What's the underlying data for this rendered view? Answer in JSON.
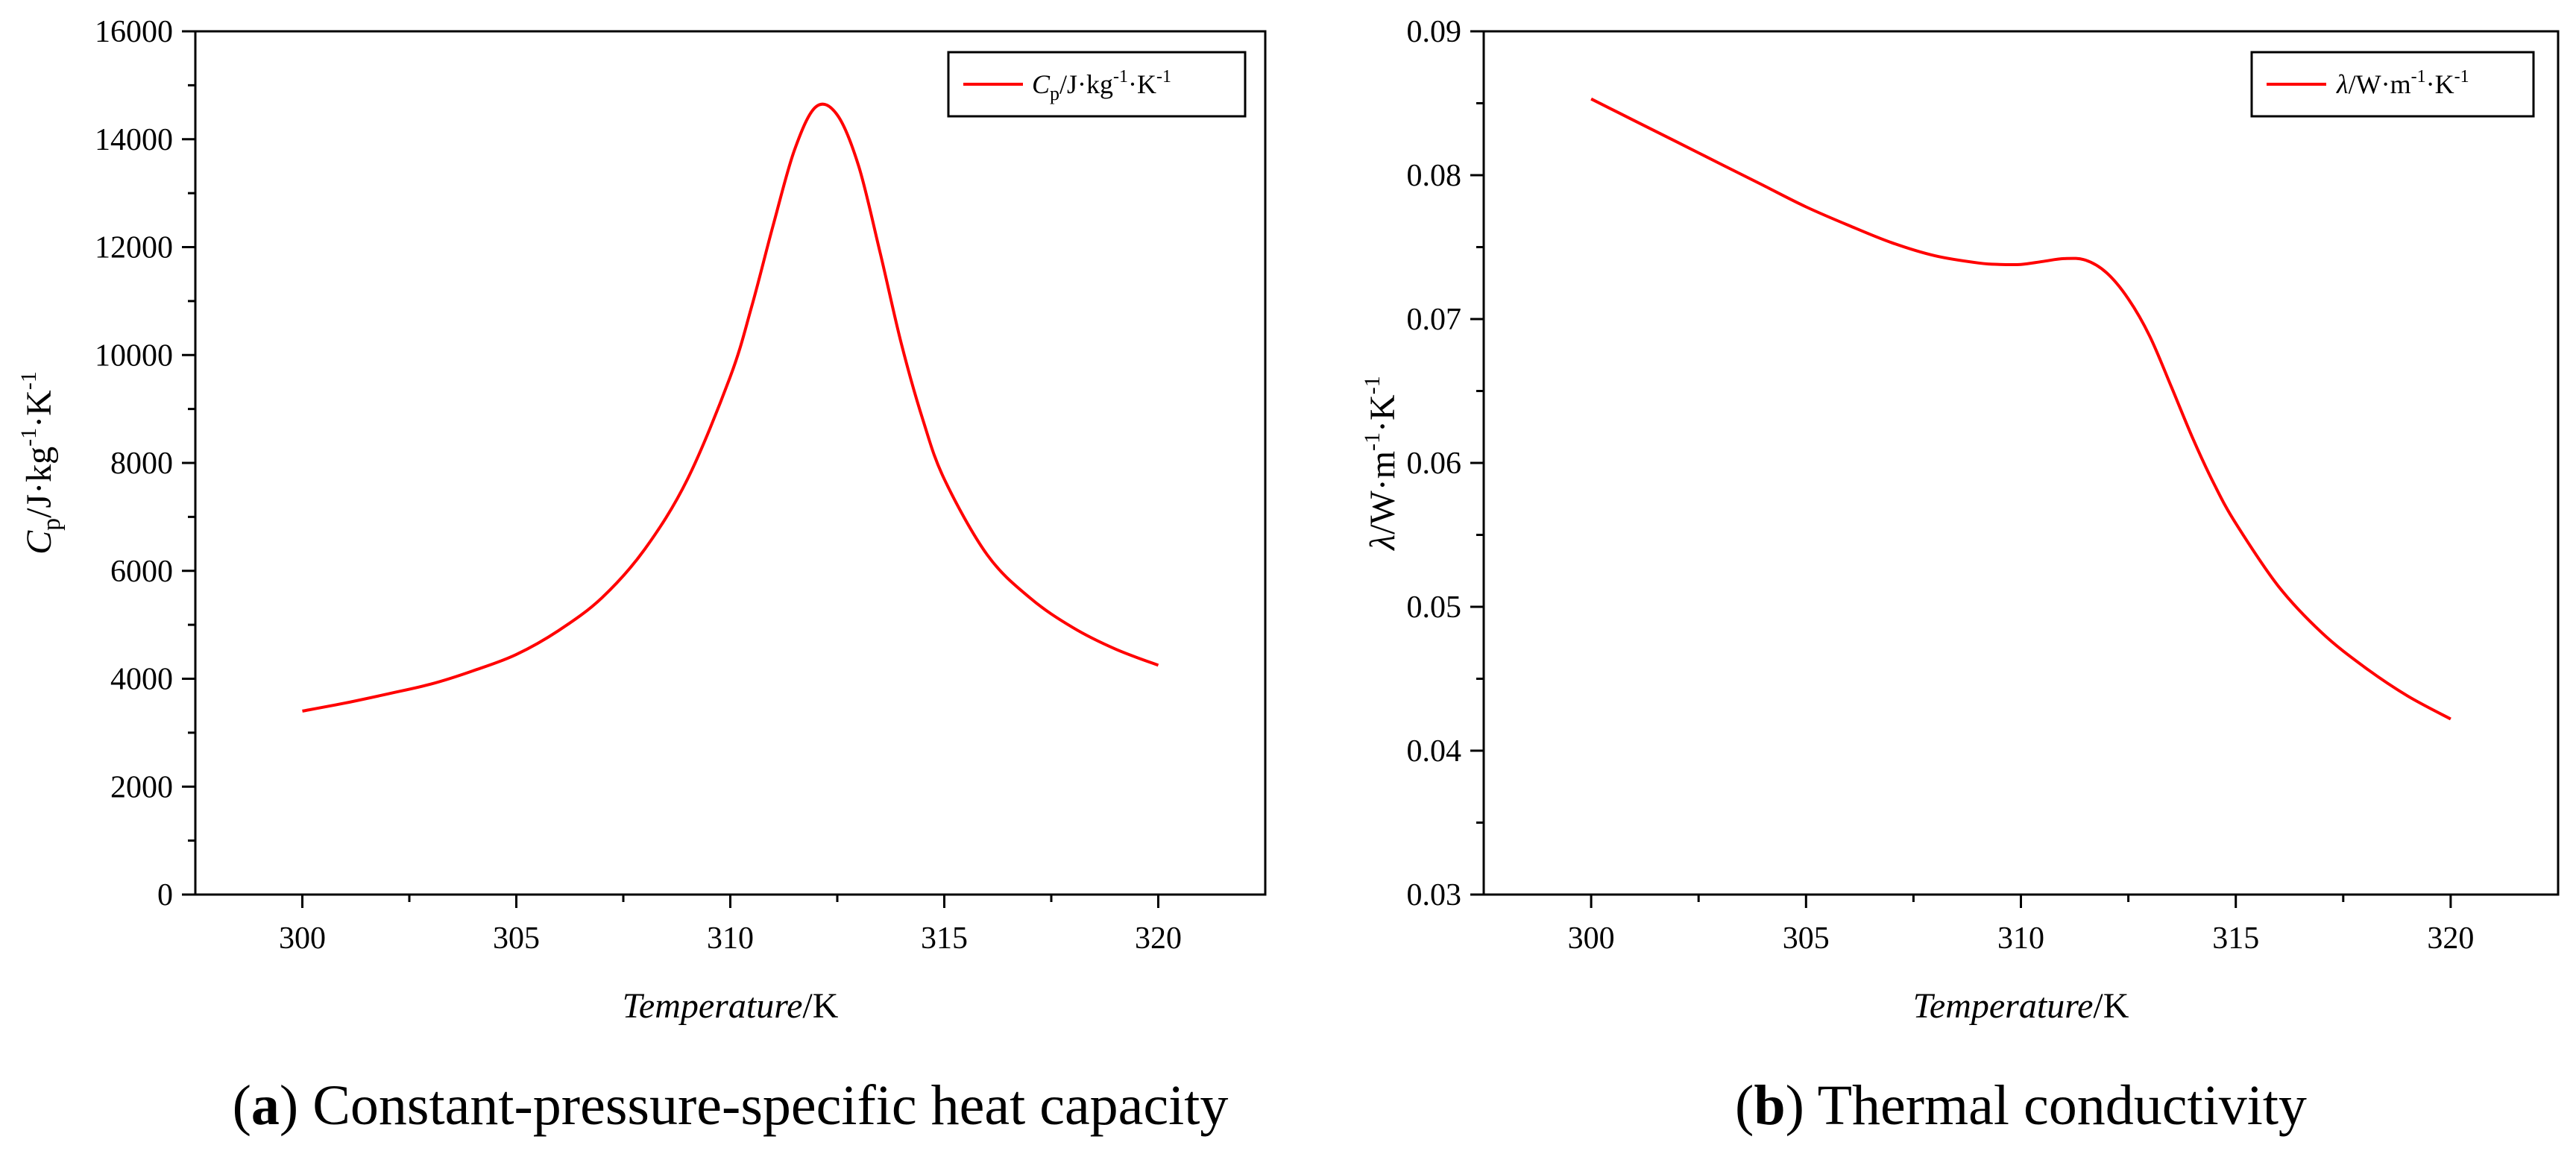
{
  "figure": {
    "captions": [
      {
        "letter": "a",
        "text": " Constant-pressure-specific heat capacity"
      },
      {
        "letter": "b",
        "text": " Thermal conductivity"
      }
    ]
  },
  "chart_data": [
    {
      "id": "a",
      "type": "line",
      "title": "",
      "xlabel": {
        "italic": "Temperature",
        "rest": "/K"
      },
      "ylabel": "Cp/J·kg⁻¹·K⁻¹",
      "xlim": [
        297.5,
        322.5
      ],
      "ylim": [
        0,
        16000
      ],
      "xticks": [
        300,
        305,
        310,
        315,
        320
      ],
      "yticks": [
        0,
        2000,
        4000,
        6000,
        8000,
        10000,
        12000,
        14000,
        16000
      ],
      "ytick_labels": [
        "0",
        "2000",
        "4000",
        "6000",
        "8000",
        "10000",
        "12000",
        "14000",
        "16000"
      ],
      "grid": false,
      "legend_position": "top-right",
      "series": [
        {
          "name": "Cp/J·kg⁻¹·K⁻¹",
          "color": "#ff0000",
          "x": [
            300,
            301,
            302,
            303,
            304,
            305,
            306,
            307,
            308,
            309,
            310,
            310.5,
            311,
            311.5,
            312,
            312.5,
            313,
            313.5,
            314,
            314.5,
            315,
            316,
            317,
            318,
            319,
            320
          ],
          "y": [
            3400,
            3550,
            3720,
            3900,
            4150,
            4450,
            4900,
            5500,
            6400,
            7700,
            9600,
            10900,
            12400,
            13800,
            14600,
            14450,
            13500,
            11900,
            10200,
            8800,
            7700,
            6300,
            5500,
            4950,
            4550,
            4250
          ]
        }
      ]
    },
    {
      "id": "b",
      "type": "line",
      "title": "",
      "xlabel": {
        "italic": "Temperature",
        "rest": "/K"
      },
      "ylabel": "λ/W·m⁻¹·K⁻¹",
      "xlim": [
        297.5,
        322.5
      ],
      "ylim": [
        0.03,
        0.09
      ],
      "xticks": [
        300,
        305,
        310,
        315,
        320
      ],
      "yticks": [
        0.03,
        0.04,
        0.05,
        0.06,
        0.07,
        0.08,
        0.09
      ],
      "ytick_labels": [
        "0.03",
        "0.04",
        "0.05",
        "0.06",
        "0.07",
        "0.08",
        "0.09"
      ],
      "grid": false,
      "legend_position": "top-right",
      "series": [
        {
          "name": "λ/W·m⁻¹·K⁻¹",
          "color": "#ff0000",
          "x": [
            300,
            301,
            302,
            303,
            304,
            305,
            306,
            307,
            308,
            309,
            309.5,
            310,
            310.5,
            311,
            311.5,
            312,
            312.5,
            313,
            313.5,
            314,
            314.5,
            315,
            316,
            317,
            318,
            319,
            320
          ],
          "y": [
            0.0853,
            0.0838,
            0.0823,
            0.0808,
            0.0793,
            0.0778,
            0.0765,
            0.0753,
            0.0744,
            0.0739,
            0.0738,
            0.0738,
            0.074,
            0.0742,
            0.0741,
            0.0732,
            0.0714,
            0.0688,
            0.0653,
            0.0617,
            0.0585,
            0.0558,
            0.0514,
            0.0482,
            0.0458,
            0.0438,
            0.0422
          ]
        }
      ]
    }
  ]
}
